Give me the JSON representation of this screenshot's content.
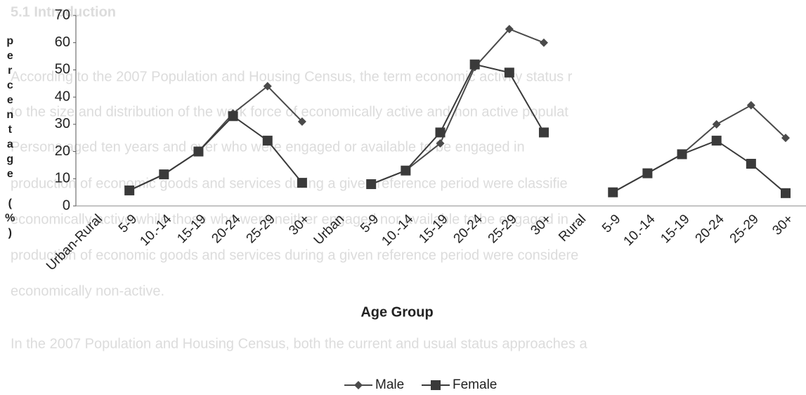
{
  "background_text": [
    "5.1 Introduction",
    "According to the 2007 Population and Housing Census, the term economic activity status r",
    "to the size and distribution of the work force of economically active and non active populat",
    "Persons aged ten years and over who were engaged or available to be engaged in",
    "production of economic goods and services during a given reference period were classifie",
    "economically active while those who were neither engaged nor available to be engaged in",
    "production of economic goods and services during a given reference period were considere",
    "economically non-active.",
    "In the 2007 Population and Housing Census, both the current and usual status approaches a"
  ],
  "chart_data": {
    "type": "line",
    "x_label": "Age Group",
    "y_label": "percentage (%)",
    "categories": [
      "Urban-Rural",
      "5-9",
      "10.-14",
      "15-19",
      "20-24",
      "25-29",
      "30+",
      "Urban",
      "5-9",
      "10.-14",
      "15-19",
      "20-24",
      "25-29",
      "30+",
      "Rural",
      "5-9",
      "10.-14",
      "15-19",
      "20-24",
      "25-29",
      "30+"
    ],
    "series": [
      {
        "name": "Male",
        "color": "#4a4a4a",
        "marker": "diamond",
        "values": [
          null,
          5.7,
          11.6,
          20,
          34,
          44,
          31,
          null,
          8,
          13,
          23,
          51,
          65,
          60,
          null,
          5,
          12,
          19,
          30,
          37,
          25
        ]
      },
      {
        "name": "Female",
        "color": "#3a3a3a",
        "marker": "square",
        "values": [
          null,
          5.7,
          11.6,
          20,
          33,
          24,
          8.5,
          null,
          8,
          13,
          27,
          52,
          49,
          27,
          null,
          5,
          12,
          19,
          24,
          15.5,
          4.7
        ]
      }
    ],
    "ylim": [
      0,
      70
    ],
    "yticks": [
      0,
      10,
      20,
      30,
      40,
      50,
      60,
      70
    ],
    "grid": false,
    "legend": "bottom"
  }
}
